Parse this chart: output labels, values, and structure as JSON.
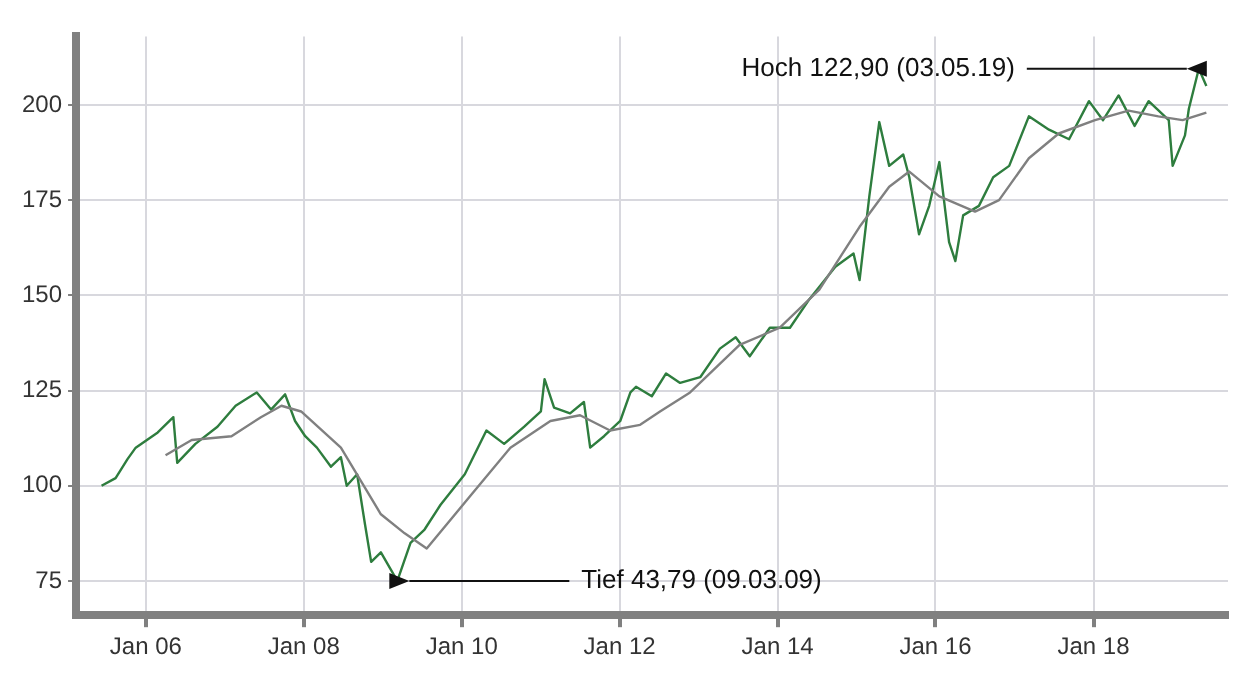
{
  "chart_data": {
    "type": "line",
    "xlim": [
      "2005-02-12",
      "2019-09-15"
    ],
    "ylim": [
      66,
      218
    ],
    "xticks": [
      {
        "value": "2006-01-01",
        "label": "Jan 06"
      },
      {
        "value": "2008-01-01",
        "label": "Jan 08"
      },
      {
        "value": "2010-01-01",
        "label": "Jan 10"
      },
      {
        "value": "2012-01-01",
        "label": "Jan 12"
      },
      {
        "value": "2014-01-01",
        "label": "Jan 14"
      },
      {
        "value": "2016-01-01",
        "label": "Jan 16"
      },
      {
        "value": "2018-01-01",
        "label": "Jan 18"
      }
    ],
    "yticks": [
      75,
      100,
      125,
      150,
      175,
      200
    ],
    "grid": true,
    "legend": false,
    "marker": "none",
    "line_style": "solid",
    "annotations": [
      {
        "text": "Hoch 122,90 (03.05.19)",
        "x": "2019-05-03",
        "y": 209.5
      },
      {
        "text": "Tief 43,79 (09.03.09)",
        "x": "2009-03-09",
        "y": 75
      }
    ],
    "series": [
      {
        "color": "#2e7d3e",
        "x": [
          "2005-06-10",
          "2005-08-14",
          "2005-10-08",
          "2005-11-15",
          "2006-02-25",
          "2006-05-08",
          "2006-05-26",
          "2006-08-18",
          "2006-11-28",
          "2007-02-20",
          "2007-05-29",
          "2007-08-03",
          "2007-10-07",
          "2007-11-22",
          "2008-01-08",
          "2008-03-02",
          "2008-05-06",
          "2008-06-21",
          "2008-07-18",
          "2008-09-04",
          "2008-10-10",
          "2008-11-08",
          "2008-12-23",
          "2009-03-09",
          "2009-05-09",
          "2009-07-13",
          "2009-09-25",
          "2010-01-15",
          "2010-04-25",
          "2010-07-16",
          "2010-10-17",
          "2011-01-02",
          "2011-01-19",
          "2011-03-04",
          "2011-05-17",
          "2011-07-20",
          "2011-08-18",
          "2011-10-21",
          "2012-01-04",
          "2012-02-20",
          "2012-03-17",
          "2012-05-29",
          "2012-08-03",
          "2012-10-07",
          "2013-01-08",
          "2013-04-09",
          "2013-06-21",
          "2013-08-25",
          "2013-11-26",
          "2014-02-27",
          "2014-05-28",
          "2014-09-25",
          "2014-12-18",
          "2015-01-15",
          "2015-03-01",
          "2015-04-16",
          "2015-06-01",
          "2015-08-05",
          "2015-09-02",
          "2015-10-17",
          "2015-12-03",
          "2016-01-19",
          "2016-03-04",
          "2016-04-02",
          "2016-05-08",
          "2016-07-20",
          "2016-09-24",
          "2016-12-07",
          "2017-03-08",
          "2017-06-09",
          "2017-09-10",
          "2017-12-11",
          "2018-02-14",
          "2018-04-27",
          "2018-07-10",
          "2018-09-13",
          "2018-12-15",
          "2019-01-02",
          "2019-02-28",
          "2019-03-18",
          "2019-05-03",
          "2019-06-07"
        ],
        "values": [
          100,
          102,
          107,
          110,
          114,
          118,
          106,
          111,
          115.5,
          121,
          124.5,
          120,
          124,
          117,
          113,
          110,
          105,
          107.5,
          100,
          103,
          90,
          80,
          82.5,
          75,
          85,
          88.5,
          95,
          103,
          114.5,
          111,
          115.5,
          119.5,
          128,
          120.5,
          119,
          122,
          110,
          113,
          117,
          124.5,
          126,
          123.5,
          129.5,
          127,
          128.5,
          136,
          139,
          134,
          141.5,
          141.5,
          149,
          157.5,
          161,
          154,
          176,
          195.5,
          184,
          187,
          181,
          166,
          173.5,
          185,
          164,
          159,
          171,
          173.5,
          181,
          184,
          197,
          193.5,
          191,
          201,
          196,
          202.5,
          194.5,
          201,
          196,
          184,
          192,
          199,
          209.5,
          205
        ]
      },
      {
        "color": "#808080",
        "x": [
          "2006-04-02",
          "2006-08-01",
          "2007-02-01",
          "2007-06-17",
          "2007-09-20",
          "2007-12-20",
          "2008-06-21",
          "2008-12-23",
          "2009-04-12",
          "2009-07-23",
          "2010-02-12",
          "2010-08-14",
          "2011-02-15",
          "2011-07-02",
          "2011-11-18",
          "2012-04-05",
          "2012-07-06",
          "2012-11-22",
          "2013-07-09",
          "2014-01-11",
          "2014-07-13",
          "2015-01-15",
          "2015-06-01",
          "2015-09-02",
          "2016-01-19",
          "2016-07-02",
          "2016-10-21",
          "2017-03-08",
          "2017-07-24",
          "2018-01-08",
          "2018-06-12",
          "2018-10-28",
          "2019-02-17",
          "2019-06-07"
        ],
        "values": [
          108,
          112,
          113,
          118,
          121,
          119.5,
          110,
          92.5,
          87.5,
          83.5,
          97.5,
          110,
          117,
          118.5,
          114.5,
          116,
          119.5,
          124.5,
          137,
          141.5,
          151.5,
          168,
          178.5,
          182.5,
          176,
          172,
          175,
          186,
          192.5,
          196,
          198.5,
          197,
          196,
          198
        ]
      }
    ]
  }
}
